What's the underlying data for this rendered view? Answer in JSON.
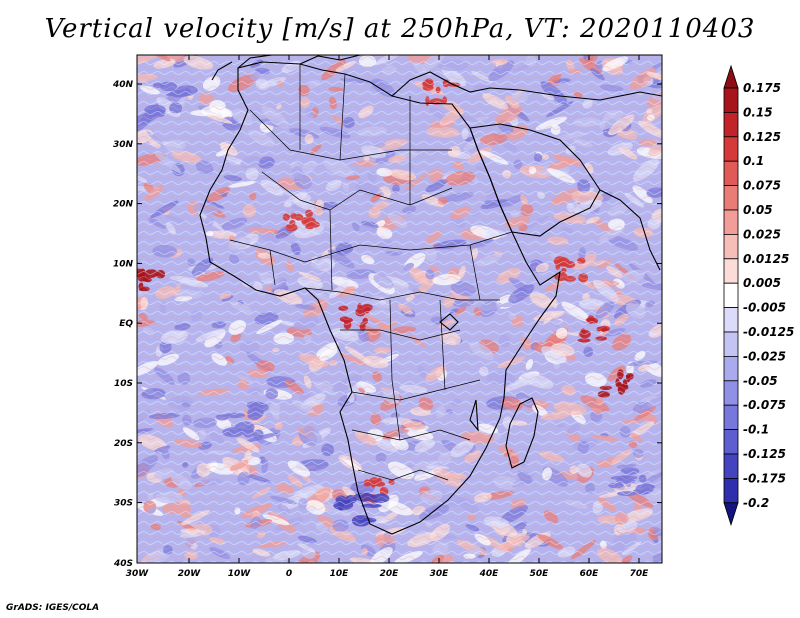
{
  "title": "Vertical velocity [m/s] at 250hPa, VT: 2020110403",
  "credit": "GrADS: IGES/COLA",
  "axes": {
    "lat_ticks": [
      "40N",
      "30N",
      "20N",
      "10N",
      "EQ",
      "10S",
      "20S",
      "30S",
      "40S"
    ],
    "lon_ticks": [
      "30W",
      "20W",
      "10W",
      "0",
      "10E",
      "20E",
      "30E",
      "40E",
      "50E",
      "60E",
      "70E"
    ]
  },
  "colorbar": {
    "labels": [
      "0.175",
      "0.15",
      "0.125",
      "0.1",
      "0.075",
      "0.05",
      "0.025",
      "0.0125",
      "0.005",
      "-0.005",
      "-0.0125",
      "-0.025",
      "-0.05",
      "-0.075",
      "-0.1",
      "-0.125",
      "-0.175",
      "-0.2"
    ],
    "colors": [
      "#a8141c",
      "#c2222a",
      "#d43a3a",
      "#e05a58",
      "#ea7c78",
      "#f29d98",
      "#f7bdb8",
      "#fbdcd8",
      "#ffffff",
      "#dcdcfa",
      "#c4c4f4",
      "#aaaaee",
      "#9090e6",
      "#7878dc",
      "#5e5ed0",
      "#4444c0",
      "#2e2eae",
      "#1c1c96"
    ],
    "top_color": "#8c0d14",
    "bottom_color": "#141480"
  },
  "map": {
    "background": "#b4b4f0",
    "region": "Africa",
    "lon_range": [
      -30,
      75
    ],
    "lat_range": [
      -40,
      45
    ]
  }
}
